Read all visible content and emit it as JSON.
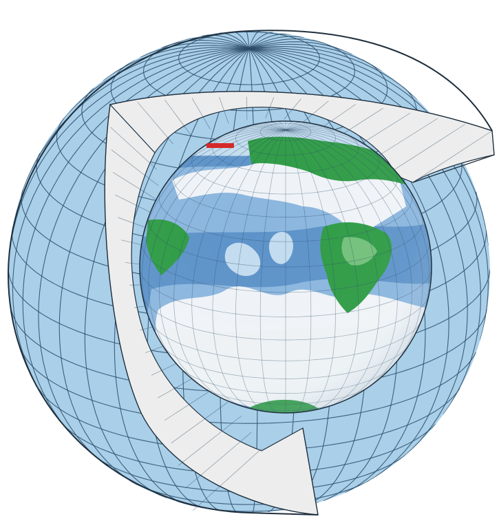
{
  "diagram": {
    "subject": "cutaway-globe-grid",
    "colors": {
      "outer_shell": "#a9cfe9",
      "grid_line": "#2a4a66",
      "outline": "#1f2f3d",
      "cut_face": "#ededed",
      "cut_face_shadow": "#d2d2d2",
      "ocean_deep": "#5d93c9",
      "ocean_mid": "#8bb6de",
      "ocean_light": "#c3dcef",
      "cloud": "#f4f7f8",
      "land_dark": "#2e9b45",
      "land_light": "#72c07a",
      "marker": "#d42a2a"
    }
  }
}
